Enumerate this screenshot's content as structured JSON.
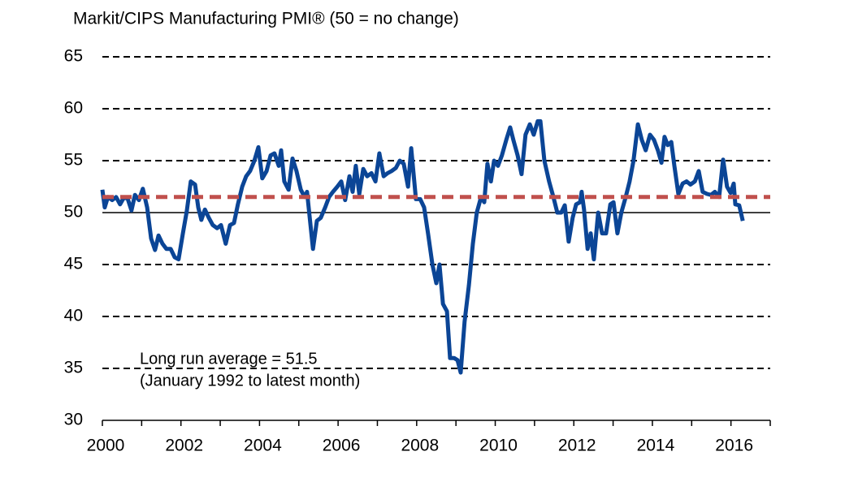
{
  "chart_data": {
    "type": "line",
    "title": "Markit/CIPS Manufacturing PMI® (50 = no change)",
    "annotations": [
      "Long run average = 51.5",
      "(January 1992 to latest month)"
    ],
    "xlim": [
      2000,
      2017
    ],
    "xticks": [
      2000,
      2002,
      2004,
      2006,
      2008,
      2010,
      2012,
      2014,
      2016
    ],
    "xminorticks": [
      2001,
      2003,
      2005,
      2007,
      2009,
      2011,
      2013,
      2015,
      2017
    ],
    "ylim": [
      30,
      65
    ],
    "yticks": [
      30,
      35,
      40,
      45,
      50,
      55,
      60,
      65
    ],
    "grid": true,
    "baseline": 50,
    "average": {
      "value": 51.5,
      "color": "#c0504d"
    },
    "series": [
      {
        "name": "PMI",
        "color": "#0b4596",
        "x": [
          2000.0,
          2000.06,
          2000.14,
          2000.25,
          2000.35,
          2000.45,
          2000.54,
          2000.64,
          2000.74,
          2000.83,
          2000.93,
          2001.03,
          2001.14,
          2001.24,
          2001.34,
          2001.43,
          2001.53,
          2001.63,
          2001.74,
          2001.84,
          2001.94,
          2002.05,
          2002.15,
          2002.25,
          2002.36,
          2002.44,
          2002.52,
          2002.61,
          2002.71,
          2002.81,
          2002.92,
          2003.02,
          2003.14,
          2003.25,
          2003.35,
          2003.45,
          2003.56,
          2003.66,
          2003.76,
          2003.87,
          2003.97,
          2004.07,
          2004.18,
          2004.28,
          2004.38,
          2004.49,
          2004.55,
          2004.63,
          2004.74,
          2004.84,
          2004.94,
          2005.05,
          2005.15,
          2005.21,
          2005.36,
          2005.46,
          2005.56,
          2005.67,
          2005.77,
          2005.87,
          2005.98,
          2006.08,
          2006.18,
          2006.29,
          2006.37,
          2006.45,
          2006.54,
          2006.64,
          2006.74,
          2006.85,
          2006.95,
          2007.05,
          2007.16,
          2007.26,
          2007.36,
          2007.47,
          2007.57,
          2007.67,
          2007.78,
          2007.86,
          2007.98,
          2008.09,
          2008.19,
          2008.29,
          2008.4,
          2008.5,
          2008.58,
          2008.67,
          2008.77,
          2008.85,
          2008.95,
          2009.04,
          2009.12,
          2009.22,
          2009.33,
          2009.43,
          2009.53,
          2009.64,
          2009.72,
          2009.8,
          2009.89,
          2009.97,
          2010.07,
          2010.17,
          2010.28,
          2010.38,
          2010.46,
          2010.57,
          2010.67,
          2010.77,
          2010.88,
          2010.98,
          2011.08,
          2011.15,
          2011.25,
          2011.37,
          2011.48,
          2011.58,
          2011.68,
          2011.77,
          2011.87,
          2011.97,
          2012.06,
          2012.16,
          2012.2,
          2012.26,
          2012.35,
          2012.43,
          2012.51,
          2012.62,
          2012.72,
          2012.82,
          2012.93,
          2013.01,
          2013.11,
          2013.21,
          2013.32,
          2013.42,
          2013.52,
          2013.63,
          2013.73,
          2013.83,
          2013.94,
          2014.04,
          2014.14,
          2014.23,
          2014.31,
          2014.39,
          2014.48,
          2014.56,
          2014.66,
          2014.77,
          2014.87,
          2014.97,
          2015.08,
          2015.18,
          2015.28,
          2015.39,
          2015.49,
          2015.59,
          2015.7,
          2015.8,
          2015.9,
          2015.99,
          2016.07,
          2016.11,
          2016.21,
          2016.3
        ],
        "values": [
          52.2,
          50.5,
          51.5,
          51.2,
          51.5,
          50.8,
          51.4,
          51.4,
          50.2,
          51.7,
          51.2,
          52.3,
          50.5,
          47.5,
          46.4,
          47.8,
          47.0,
          46.5,
          46.5,
          45.7,
          45.5,
          48.0,
          50.2,
          53.0,
          52.7,
          50.5,
          49.3,
          50.3,
          49.5,
          48.8,
          48.5,
          48.8,
          47.0,
          48.8,
          49.0,
          50.8,
          52.5,
          53.5,
          54.0,
          55.0,
          56.3,
          53.3,
          54.0,
          55.5,
          55.7,
          54.5,
          56.0,
          53.0,
          52.2,
          55.2,
          54.0,
          52.2,
          51.5,
          52.0,
          46.5,
          49.2,
          49.5,
          50.5,
          51.5,
          52.0,
          52.5,
          53.0,
          51.2,
          53.5,
          52.0,
          54.5,
          51.8,
          54.2,
          53.5,
          53.8,
          53.0,
          55.7,
          53.5,
          53.8,
          54.0,
          54.3,
          55.0,
          54.7,
          52.5,
          56.2,
          51.3,
          51.3,
          50.5,
          48.0,
          45.0,
          43.2,
          45.0,
          41.2,
          40.5,
          36.0,
          36.0,
          35.8,
          34.6,
          39.5,
          43.0,
          47.0,
          50.0,
          51.5,
          51.0,
          54.7,
          53.0,
          55.0,
          54.5,
          55.5,
          57.0,
          58.2,
          57.0,
          55.5,
          53.7,
          57.5,
          58.5,
          57.5,
          58.8,
          58.8,
          55.0,
          53.0,
          51.5,
          50.0,
          50.0,
          50.7,
          47.2,
          49.5,
          50.8,
          51.0,
          52.0,
          50.3,
          46.5,
          48.0,
          45.5,
          50.0,
          48.0,
          48.0,
          50.8,
          51.0,
          48.0,
          50.0,
          51.5,
          53.0,
          55.0,
          58.5,
          57.0,
          56.0,
          57.5,
          57.0,
          56.0,
          54.8,
          57.3,
          56.5,
          56.8,
          54.5,
          51.8,
          52.8,
          53.0,
          52.7,
          53.0,
          54.0,
          52.0,
          51.8,
          51.7,
          52.0,
          51.5,
          55.1,
          52.5,
          51.9,
          52.8,
          50.8,
          50.7,
          49.2
        ]
      }
    ]
  }
}
